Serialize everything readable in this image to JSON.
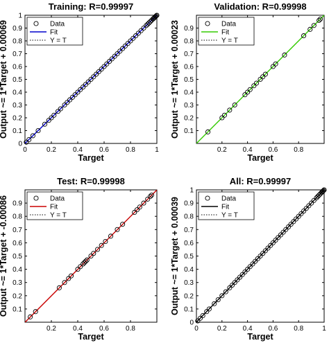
{
  "chart_data": [
    {
      "type": "scatter",
      "title": "Training: R=0.99997",
      "xlabel": "Target",
      "ylabel": "Output ~= 1*Target + 0.00069",
      "xlim": [
        0,
        1
      ],
      "ylim": [
        0,
        1
      ],
      "xticks": [
        "0",
        "0.2",
        "0.4",
        "0.6",
        "0.8",
        "1"
      ],
      "yticks": [
        "0",
        "0.1",
        "0.2",
        "0.3",
        "0.4",
        "0.5",
        "0.6",
        "0.7",
        "0.8",
        "0.9",
        "1"
      ],
      "grid": false,
      "legend_position": "top-left",
      "legend": [
        "Data",
        "Fit",
        "Y = T"
      ],
      "fit_color": "#0000cc",
      "fit": {
        "slope": 1,
        "intercept": 0.00069
      },
      "points": [
        [
          0.01,
          0.01
        ],
        [
          0.03,
          0.03
        ],
        [
          0.06,
          0.06
        ],
        [
          0.1,
          0.1
        ],
        [
          0.15,
          0.15
        ],
        [
          0.18,
          0.18
        ],
        [
          0.2,
          0.2
        ],
        [
          0.22,
          0.22
        ],
        [
          0.25,
          0.25
        ],
        [
          0.27,
          0.27
        ],
        [
          0.3,
          0.3
        ],
        [
          0.32,
          0.32
        ],
        [
          0.34,
          0.34
        ],
        [
          0.36,
          0.36
        ],
        [
          0.38,
          0.38
        ],
        [
          0.4,
          0.4
        ],
        [
          0.42,
          0.42
        ],
        [
          0.44,
          0.44
        ],
        [
          0.46,
          0.46
        ],
        [
          0.48,
          0.48
        ],
        [
          0.5,
          0.5
        ],
        [
          0.52,
          0.52
        ],
        [
          0.54,
          0.54
        ],
        [
          0.56,
          0.56
        ],
        [
          0.58,
          0.58
        ],
        [
          0.6,
          0.6
        ],
        [
          0.62,
          0.62
        ],
        [
          0.64,
          0.64
        ],
        [
          0.66,
          0.66
        ],
        [
          0.68,
          0.68
        ],
        [
          0.7,
          0.7
        ],
        [
          0.72,
          0.72
        ],
        [
          0.74,
          0.74
        ],
        [
          0.76,
          0.76
        ],
        [
          0.78,
          0.78
        ],
        [
          0.8,
          0.8
        ],
        [
          0.82,
          0.82
        ],
        [
          0.84,
          0.84
        ],
        [
          0.86,
          0.86
        ],
        [
          0.88,
          0.88
        ],
        [
          0.9,
          0.9
        ],
        [
          0.92,
          0.92
        ],
        [
          0.93,
          0.93
        ],
        [
          0.94,
          0.94
        ],
        [
          0.95,
          0.95
        ],
        [
          0.96,
          0.96
        ],
        [
          0.97,
          0.97
        ],
        [
          0.975,
          0.975
        ],
        [
          0.98,
          0.98
        ],
        [
          0.985,
          0.985
        ],
        [
          0.99,
          0.99
        ],
        [
          0.995,
          0.995
        ],
        [
          1.0,
          1.0
        ]
      ]
    },
    {
      "type": "scatter",
      "title": "Validation: R=0.99998",
      "xlabel": "Target",
      "ylabel": "Output ~= 1*Target + 0.00023",
      "xlim": [
        0,
        1
      ],
      "ylim": [
        0,
        1
      ],
      "xticks": [
        "0.2",
        "0.4",
        "0.6",
        "0.8"
      ],
      "yticks": [
        "0.1",
        "0.2",
        "0.3",
        "0.4",
        "0.5",
        "0.6",
        "0.7",
        "0.8",
        "0.9"
      ],
      "grid": false,
      "legend_position": "top-left",
      "legend": [
        "Data",
        "Fit",
        "Y = T"
      ],
      "fit_color": "#33cc00",
      "fit": {
        "slope": 1,
        "intercept": 0.00023
      },
      "points": [
        [
          0.09,
          0.09
        ],
        [
          0.2,
          0.2
        ],
        [
          0.22,
          0.22
        ],
        [
          0.26,
          0.26
        ],
        [
          0.3,
          0.3
        ],
        [
          0.38,
          0.38
        ],
        [
          0.4,
          0.4
        ],
        [
          0.42,
          0.42
        ],
        [
          0.45,
          0.45
        ],
        [
          0.47,
          0.47
        ],
        [
          0.5,
          0.5
        ],
        [
          0.52,
          0.52
        ],
        [
          0.54,
          0.54
        ],
        [
          0.6,
          0.6
        ],
        [
          0.62,
          0.62
        ],
        [
          0.69,
          0.69
        ],
        [
          0.84,
          0.84
        ],
        [
          0.89,
          0.89
        ],
        [
          0.92,
          0.92
        ],
        [
          0.96,
          0.96
        ],
        [
          0.97,
          0.97
        ]
      ]
    },
    {
      "type": "scatter",
      "title": "Test: R=0.99998",
      "xlabel": "Target",
      "ylabel": "Output ~= 1*Target + -0.00086",
      "xlim": [
        0,
        1
      ],
      "ylim": [
        0,
        1
      ],
      "xticks": [
        "0.2",
        "0.4",
        "0.6",
        "0.8"
      ],
      "yticks": [
        "0.1",
        "0.2",
        "0.3",
        "0.4",
        "0.5",
        "0.6",
        "0.7",
        "0.8",
        "0.9"
      ],
      "grid": false,
      "legend_position": "top-left",
      "legend": [
        "Data",
        "Fit",
        "Y = T"
      ],
      "fit_color": "#cc0000",
      "fit": {
        "slope": 1,
        "intercept": -0.00086
      },
      "points": [
        [
          0.04,
          0.04
        ],
        [
          0.08,
          0.08
        ],
        [
          0.26,
          0.26
        ],
        [
          0.3,
          0.3
        ],
        [
          0.33,
          0.33
        ],
        [
          0.35,
          0.35
        ],
        [
          0.4,
          0.4
        ],
        [
          0.42,
          0.42
        ],
        [
          0.44,
          0.44
        ],
        [
          0.45,
          0.45
        ],
        [
          0.46,
          0.46
        ],
        [
          0.47,
          0.47
        ],
        [
          0.5,
          0.5
        ],
        [
          0.52,
          0.52
        ],
        [
          0.55,
          0.55
        ],
        [
          0.58,
          0.58
        ],
        [
          0.61,
          0.61
        ],
        [
          0.65,
          0.65
        ],
        [
          0.7,
          0.7
        ],
        [
          0.74,
          0.74
        ],
        [
          0.83,
          0.83
        ],
        [
          0.85,
          0.85
        ],
        [
          0.87,
          0.87
        ],
        [
          0.9,
          0.9
        ],
        [
          0.93,
          0.93
        ],
        [
          0.95,
          0.95
        ],
        [
          0.96,
          0.96
        ]
      ]
    },
    {
      "type": "scatter",
      "title": "All: R=0.99997",
      "xlabel": "Target",
      "ylabel": "Output ~= 1*Target + 0.00039",
      "xlim": [
        0,
        1
      ],
      "ylim": [
        0,
        1
      ],
      "xticks": [
        "0",
        "0.2",
        "0.4",
        "0.6",
        "0.8",
        "1"
      ],
      "yticks": [
        "0",
        "0.1",
        "0.2",
        "0.3",
        "0.4",
        "0.5",
        "0.6",
        "0.7",
        "0.8",
        "0.9",
        "1"
      ],
      "grid": false,
      "legend_position": "top-left",
      "legend": [
        "Data",
        "Fit",
        "Y = T"
      ],
      "fit_color": "#000000",
      "fit": {
        "slope": 1,
        "intercept": 0.00039
      },
      "points": [
        [
          0.01,
          0.01
        ],
        [
          0.03,
          0.03
        ],
        [
          0.05,
          0.05
        ],
        [
          0.08,
          0.08
        ],
        [
          0.1,
          0.1
        ],
        [
          0.14,
          0.14
        ],
        [
          0.17,
          0.17
        ],
        [
          0.2,
          0.2
        ],
        [
          0.23,
          0.23
        ],
        [
          0.26,
          0.26
        ],
        [
          0.28,
          0.28
        ],
        [
          0.3,
          0.3
        ],
        [
          0.32,
          0.32
        ],
        [
          0.34,
          0.34
        ],
        [
          0.36,
          0.36
        ],
        [
          0.38,
          0.38
        ],
        [
          0.4,
          0.4
        ],
        [
          0.42,
          0.42
        ],
        [
          0.44,
          0.44
        ],
        [
          0.46,
          0.46
        ],
        [
          0.48,
          0.48
        ],
        [
          0.5,
          0.5
        ],
        [
          0.52,
          0.52
        ],
        [
          0.54,
          0.54
        ],
        [
          0.56,
          0.56
        ],
        [
          0.58,
          0.58
        ],
        [
          0.6,
          0.6
        ],
        [
          0.62,
          0.62
        ],
        [
          0.64,
          0.64
        ],
        [
          0.66,
          0.66
        ],
        [
          0.68,
          0.68
        ],
        [
          0.7,
          0.7
        ],
        [
          0.72,
          0.72
        ],
        [
          0.74,
          0.74
        ],
        [
          0.76,
          0.76
        ],
        [
          0.78,
          0.78
        ],
        [
          0.8,
          0.8
        ],
        [
          0.82,
          0.82
        ],
        [
          0.84,
          0.84
        ],
        [
          0.86,
          0.86
        ],
        [
          0.88,
          0.88
        ],
        [
          0.9,
          0.9
        ],
        [
          0.92,
          0.92
        ],
        [
          0.94,
          0.94
        ],
        [
          0.95,
          0.95
        ],
        [
          0.96,
          0.96
        ],
        [
          0.97,
          0.97
        ],
        [
          0.98,
          0.98
        ],
        [
          0.985,
          0.985
        ],
        [
          0.99,
          0.99
        ],
        [
          0.995,
          0.995
        ],
        [
          1.0,
          1.0
        ]
      ]
    }
  ]
}
